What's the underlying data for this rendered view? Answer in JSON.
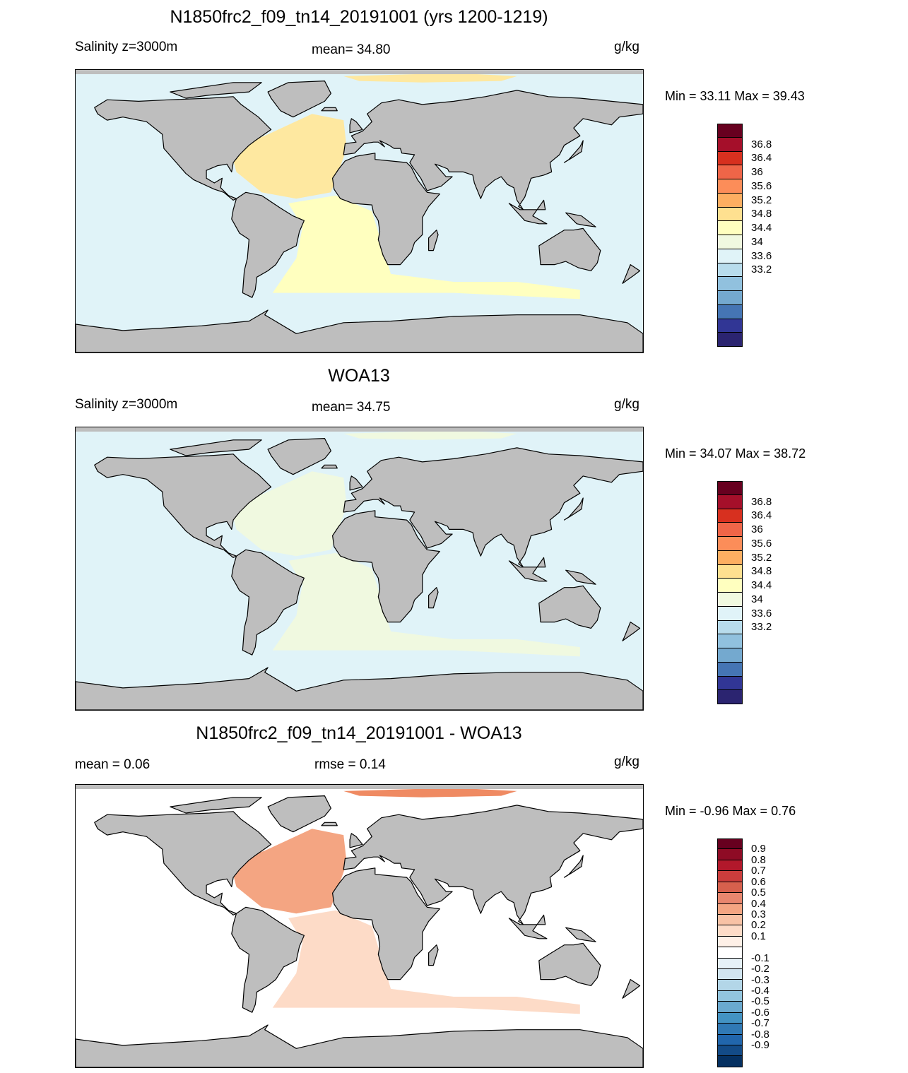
{
  "panels": [
    {
      "title": "N1850frc2_f09_tn14_20191001 (yrs 1200-1219)",
      "left_label": "Salinity z=3000m",
      "center_label": "mean=  34.80",
      "units": "g/kg",
      "minmax": "Min =  33.11 Max =  39.43",
      "colorbar": {
        "colors": [
          "#67001f",
          "#a50f2a",
          "#d7301f",
          "#ef6548",
          "#fc8d59",
          "#fdae61",
          "#fee090",
          "#ffffbf",
          "#f0f9e0",
          "#e0f3f8",
          "#b8dcec",
          "#91c1de",
          "#74a9cf",
          "#4575b4",
          "#313695",
          "#2b2470"
        ],
        "labels": [
          "36.8",
          "36.4",
          "36",
          "35.6",
          "35.2",
          "34.8",
          "34.4",
          "34",
          "33.6",
          "33.2"
        ]
      },
      "map": {
        "ocean_color": "#e0f3f8",
        "atlantic_color": "#fee8a0",
        "south_atlantic_color": "#ffffbf",
        "arctic_color": "#fee8a0",
        "land_color": "#bebebe"
      }
    },
    {
      "title": "WOA13",
      "left_label": "Salinity z=3000m",
      "center_label": "mean=  34.75",
      "units": "g/kg",
      "minmax": "Min =  34.07 Max =  38.72",
      "colorbar": {
        "colors": [
          "#67001f",
          "#a50f2a",
          "#d7301f",
          "#ef6548",
          "#fc8d59",
          "#fdae61",
          "#fee090",
          "#ffffbf",
          "#f0f9e0",
          "#e0f3f8",
          "#b8dcec",
          "#91c1de",
          "#74a9cf",
          "#4575b4",
          "#313695",
          "#2b2470"
        ],
        "labels": [
          "36.8",
          "36.4",
          "36",
          "35.6",
          "35.2",
          "34.8",
          "34.4",
          "34",
          "33.6",
          "33.2"
        ]
      },
      "map": {
        "ocean_color": "#e0f3f8",
        "atlantic_color": "#f0f9e0",
        "south_atlantic_color": "#f0f9e0",
        "arctic_color": "#f0f9e0",
        "land_color": "#bebebe"
      }
    },
    {
      "title": "N1850frc2_f09_tn14_20191001 - WOA13",
      "left_label": "mean =   0.06",
      "center_label": "rmse =   0.14",
      "units": "g/kg",
      "minmax": "Min =  -0.96 Max =   0.76",
      "colorbar": {
        "colors": [
          "#67001f",
          "#8e0b25",
          "#b2182b",
          "#cb3d3c",
          "#d6604d",
          "#e8866e",
          "#f4a582",
          "#f8c2a5",
          "#fddbc7",
          "#fef0e7",
          "#ffffff",
          "#e6f1f7",
          "#d1e5f0",
          "#b3d6e8",
          "#92c5de",
          "#6aa9cf",
          "#4393c3",
          "#3079b5",
          "#2166ac",
          "#134b87",
          "#053061"
        ],
        "labels": [
          "0.9",
          "0.8",
          "0.7",
          "0.6",
          "0.5",
          "0.4",
          "0.3",
          "0.2",
          "0.1",
          "-0.1",
          "-0.2",
          "-0.3",
          "-0.4",
          "-0.5",
          "-0.6",
          "-0.7",
          "-0.8",
          "-0.9"
        ]
      },
      "map": {
        "ocean_color": "#ffffff",
        "atlantic_color": "#f4a582",
        "south_atlantic_color": "#fddbc7",
        "arctic_color": "#ef8a62",
        "land_color": "#bebebe"
      }
    }
  ]
}
